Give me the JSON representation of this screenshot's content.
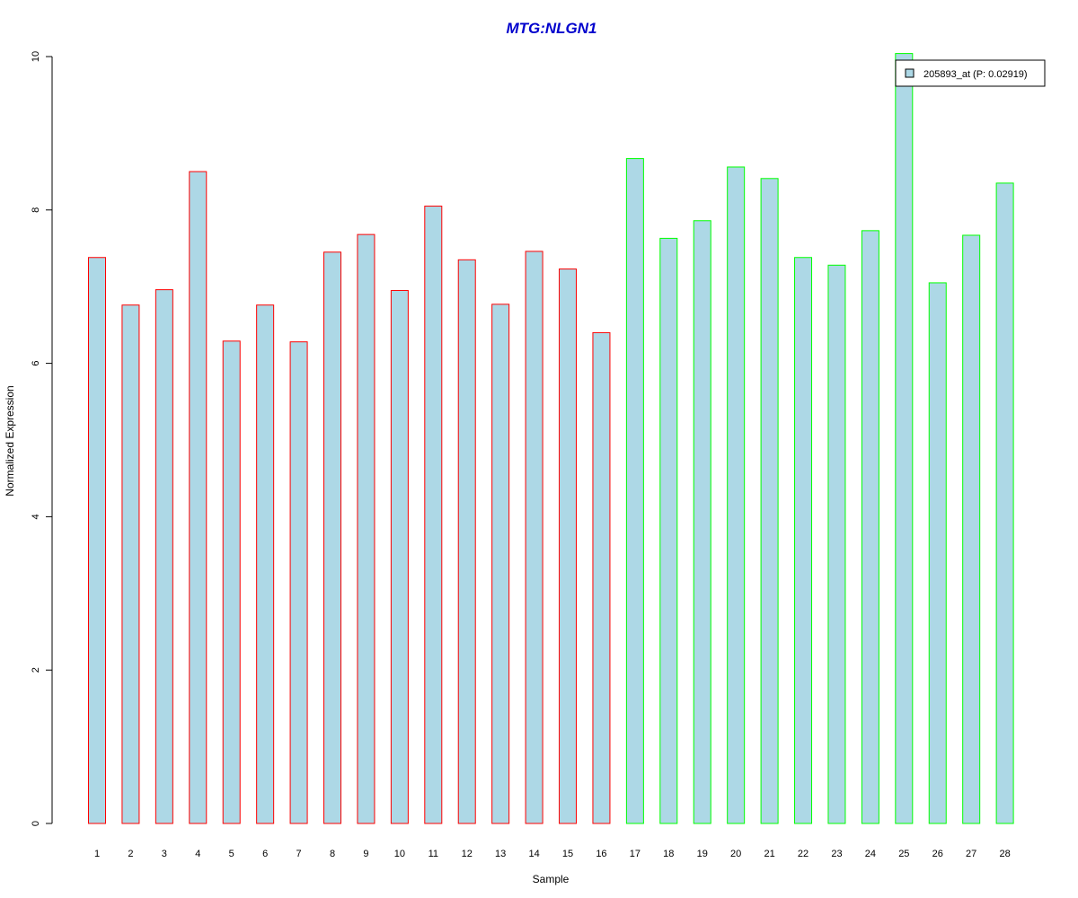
{
  "chart_data": {
    "type": "bar",
    "title": "MTG:NLGN1",
    "xlabel": "Sample",
    "ylabel": "Normalized Expression",
    "ylim": [
      0,
      10
    ],
    "yticks": [
      "0",
      "2",
      "4",
      "6",
      "8",
      "10"
    ],
    "categories": [
      "1",
      "2",
      "3",
      "4",
      "5",
      "6",
      "7",
      "8",
      "9",
      "10",
      "11",
      "12",
      "13",
      "14",
      "15",
      "16",
      "17",
      "18",
      "19",
      "20",
      "21",
      "22",
      "23",
      "24",
      "25",
      "26",
      "27",
      "28"
    ],
    "values": [
      7.38,
      6.76,
      6.96,
      8.5,
      6.29,
      6.76,
      6.28,
      7.45,
      7.68,
      6.95,
      8.05,
      7.35,
      6.77,
      7.46,
      7.23,
      6.4,
      8.67,
      7.63,
      7.86,
      8.56,
      8.41,
      7.38,
      7.28,
      7.73,
      10.04,
      7.05,
      7.67,
      8.35
    ],
    "groups": [
      {
        "range": [
          1,
          16
        ],
        "border_color": "#ff0000"
      },
      {
        "range": [
          17,
          28
        ],
        "border_color": "#00ff00"
      }
    ],
    "bar_fill": "#add8e6",
    "title_color": "#0000cd",
    "legend": {
      "label": "205893_at (P: 0.02919)",
      "position": "top-right"
    },
    "grid": false
  }
}
